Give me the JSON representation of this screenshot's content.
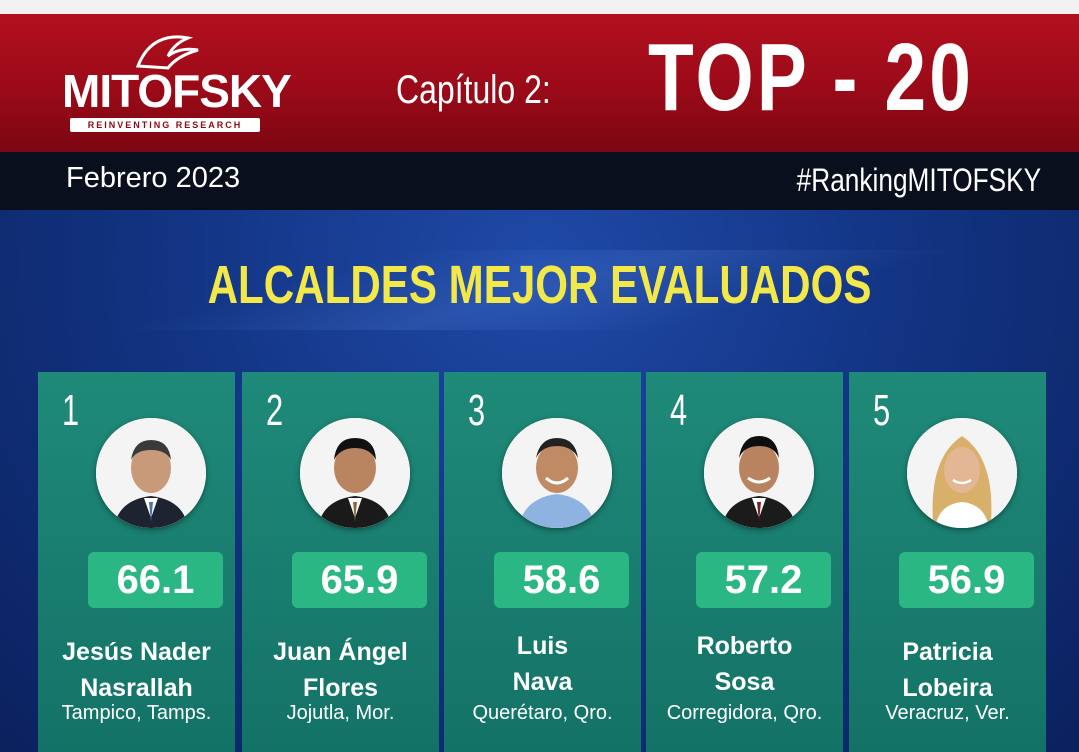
{
  "header": {
    "logo_text": "MITOFSKY",
    "logo_tagline": "REINVENTING RESEARCH",
    "chapter": "Capítulo 2:",
    "title": "TOP - 20",
    "date": "Febrero 2023",
    "hashtag": "#RankingMITOFSKY"
  },
  "heading": "ALCALDES MEJOR EVALUADOS",
  "colors": {
    "red": "#9a0a18",
    "yellow": "#f2e84a",
    "card_green": "#1f8a79",
    "score_green": "#2bb784",
    "blue": "#133585"
  },
  "cards": [
    {
      "rank": "1",
      "score": "66.1",
      "name_line1": "Jesús Nader",
      "name_line2": "Nasrallah",
      "city": "Tampico, Tamps.",
      "avatar": "person-male-suit"
    },
    {
      "rank": "2",
      "score": "65.9",
      "name_line1": "Juan Ángel",
      "name_line2": "Flores",
      "city": "Jojutla, Mor.",
      "avatar": "person-male-suit"
    },
    {
      "rank": "3",
      "score": "58.6",
      "name_line1": "Luis",
      "name_line2": "Nava",
      "city": "Querétaro, Qro.",
      "avatar": "person-male-casual"
    },
    {
      "rank": "4",
      "score": "57.2",
      "name_line1": "Roberto",
      "name_line2": "Sosa",
      "city": "Corregidora, Qro.",
      "avatar": "person-male-suit"
    },
    {
      "rank": "5",
      "score": "56.9",
      "name_line1": "Patricia",
      "name_line2": "Lobeira",
      "city": "Veracruz, Ver.",
      "avatar": "person-female"
    }
  ]
}
